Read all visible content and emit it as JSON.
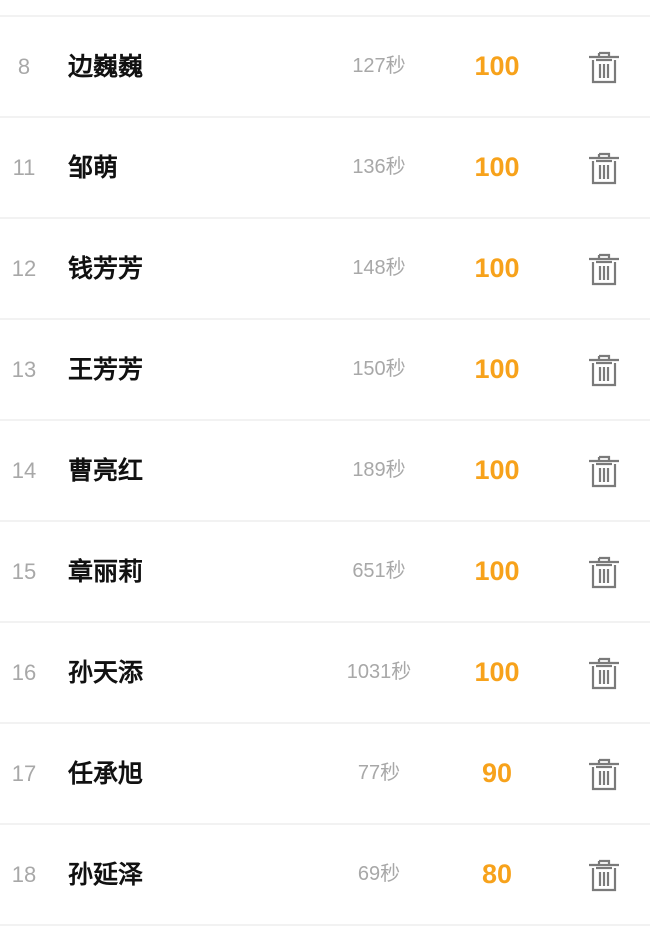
{
  "accent_color": "#f7a21b",
  "rows": [
    {
      "rank": "8",
      "name": "边巍巍",
      "time": "127秒",
      "score": "100"
    },
    {
      "rank": "11",
      "name": "邹萌",
      "time": "136秒",
      "score": "100"
    },
    {
      "rank": "12",
      "name": "钱芳芳",
      "time": "148秒",
      "score": "100"
    },
    {
      "rank": "13",
      "name": "王芳芳",
      "time": "150秒",
      "score": "100"
    },
    {
      "rank": "14",
      "name": "曹亮红",
      "time": "189秒",
      "score": "100"
    },
    {
      "rank": "15",
      "name": "章丽莉",
      "time": "651秒",
      "score": "100"
    },
    {
      "rank": "16",
      "name": "孙天添",
      "time": "1031秒",
      "score": "100"
    },
    {
      "rank": "17",
      "name": "任承旭",
      "time": "77秒",
      "score": "90"
    },
    {
      "rank": "18",
      "name": "孙延泽",
      "time": "69秒",
      "score": "80"
    }
  ],
  "row_action_icon": "trash-icon"
}
